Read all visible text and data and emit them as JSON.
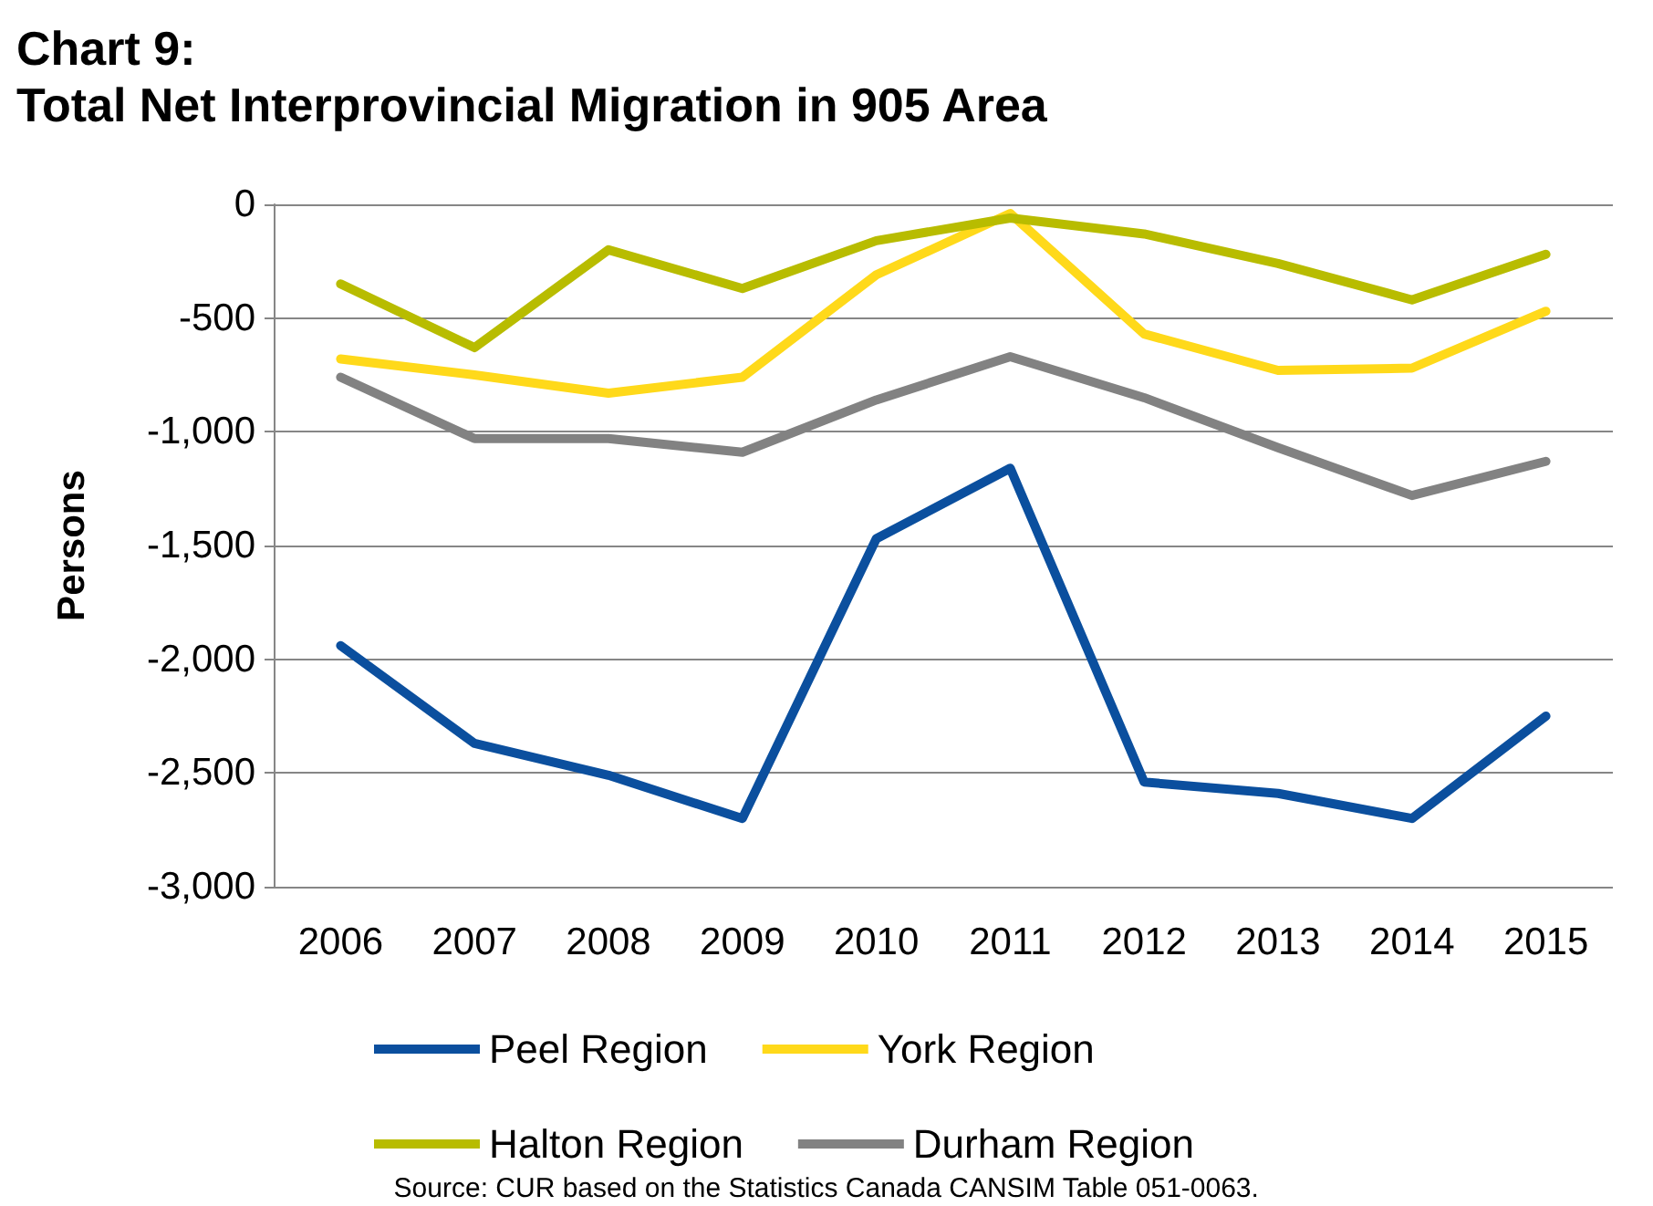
{
  "chart_data": {
    "type": "line",
    "title": "Chart 9:\nTotal Net Interprovincial Migration in 905 Area",
    "ylabel": "Persons",
    "categories": [
      "2006",
      "2007",
      "2008",
      "2009",
      "2010",
      "2011",
      "2012",
      "2013",
      "2014",
      "2015"
    ],
    "series": [
      {
        "name": "Peel Region",
        "color": "#0b4f9e",
        "values": [
          -1940,
          -2370,
          -2510,
          -2700,
          -1470,
          -1160,
          -2540,
          -2590,
          -2700,
          -2250
        ]
      },
      {
        "name": "York Region",
        "color": "#ffd91a",
        "values": [
          -680,
          -750,
          -830,
          -760,
          -310,
          -40,
          -570,
          -730,
          -720,
          -470
        ]
      },
      {
        "name": "Halton Region",
        "color": "#b8bc00",
        "values": [
          -350,
          -630,
          -200,
          -370,
          -160,
          -60,
          -130,
          -260,
          -420,
          -220
        ]
      },
      {
        "name": "Durham Region",
        "color": "#828282",
        "values": [
          -760,
          -1030,
          -1030,
          -1090,
          -860,
          -670,
          -850,
          -1070,
          -1280,
          -1130
        ]
      }
    ],
    "ylim": [
      -3000,
      0
    ],
    "yticks": [
      {
        "value": -3000,
        "label": "-3,000"
      },
      {
        "value": -2500,
        "label": "-2,500"
      },
      {
        "value": -2000,
        "label": "-2,000"
      },
      {
        "value": -1500,
        "label": "-1,500"
      },
      {
        "value": -1000,
        "label": "-1,000"
      },
      {
        "value": -500,
        "label": "-500"
      },
      {
        "value": 0,
        "label": "0"
      }
    ],
    "grid": "y",
    "legend": "bottom",
    "marker": "none",
    "line_style": "solid",
    "annotations": [
      "Source: CUR based on the Statistics Canada CANSIM Table 051-0063."
    ]
  }
}
